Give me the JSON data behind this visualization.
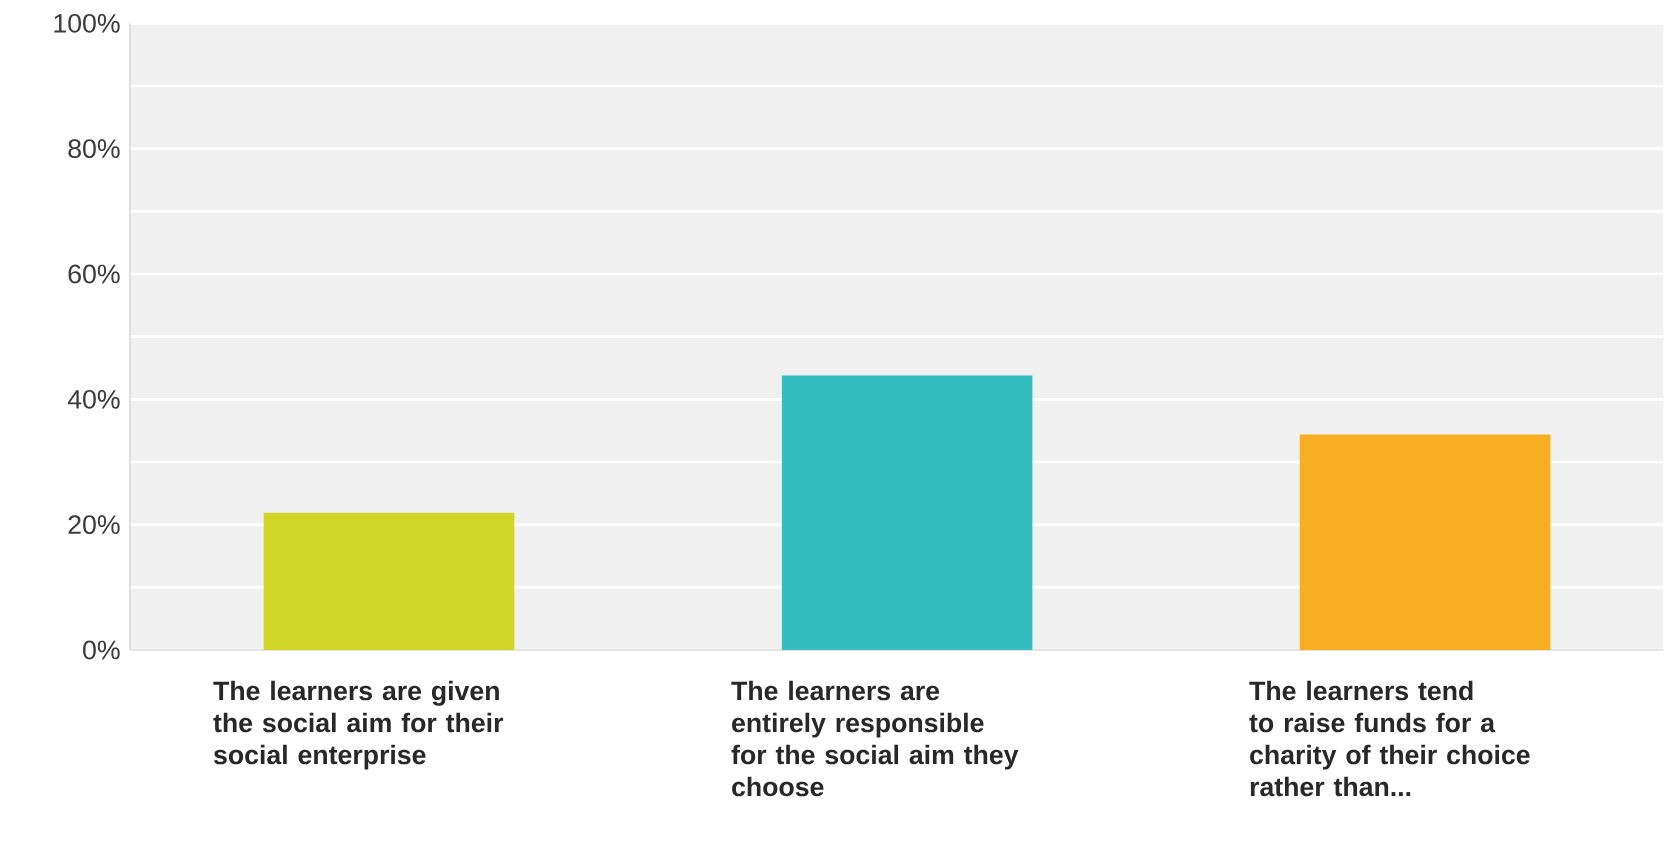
{
  "chart_data": {
    "type": "bar",
    "categories": [
      "The learners are given the social aim for their social enterprise",
      "The learners are entirely responsible for the social aim they choose",
      "The learners tend to raise funds for a charity of their choice rather than..."
    ],
    "values": [
      21.9,
      43.8,
      34.4
    ],
    "colors": [
      "#d1d626",
      "#33bdbf",
      "#f7ae21"
    ],
    "ylim": [
      0,
      100
    ],
    "yticks": [
      {
        "value": 0,
        "label": "0%"
      },
      {
        "value": 10,
        "label": null
      },
      {
        "value": 20,
        "label": "20%"
      },
      {
        "value": 30,
        "label": null
      },
      {
        "value": 40,
        "label": "40%"
      },
      {
        "value": 50,
        "label": null
      },
      {
        "value": 60,
        "label": "60%"
      },
      {
        "value": 70,
        "label": null
      },
      {
        "value": 80,
        "label": "80%"
      },
      {
        "value": 90,
        "label": null
      },
      {
        "value": 100,
        "label": "100%"
      }
    ],
    "grid": true
  }
}
